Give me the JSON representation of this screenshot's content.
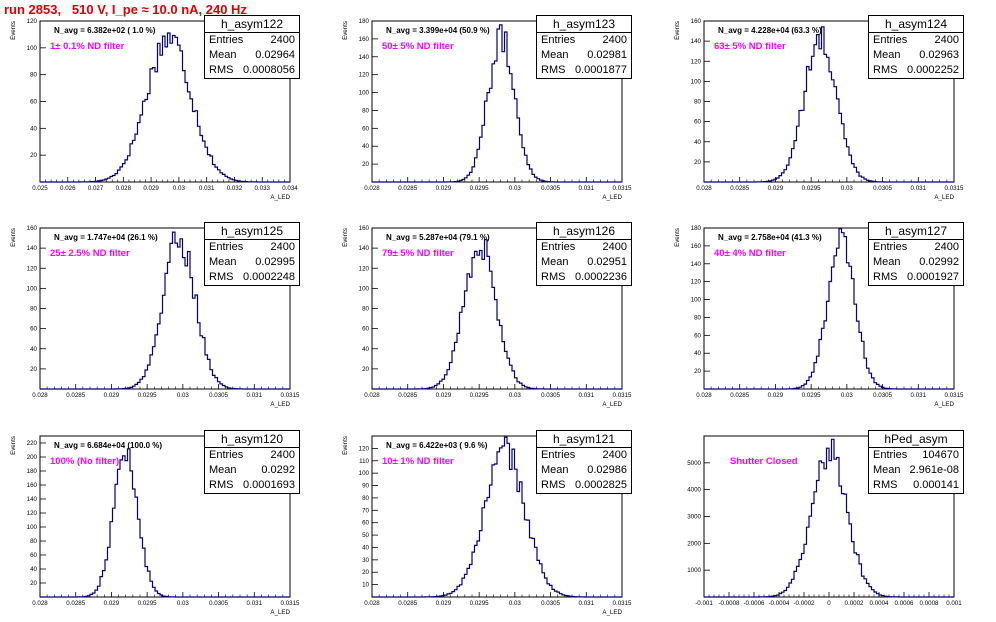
{
  "page_title": "run 2853,   510 V, I_pe ≈ 10.0 nA, 240 Hz",
  "colors": {
    "title": "#e00000",
    "filter_label": "#ff00ff",
    "histogram": "#000080",
    "axes": "#000000"
  },
  "chart_data": [
    {
      "type": "histogram",
      "name": "h_asym122",
      "ylabel": "Events",
      "xlabel": "A_LED",
      "xlim": [
        0.025,
        0.034
      ],
      "ylim": [
        0,
        120
      ],
      "xticks": [
        "0.025",
        "0.026",
        "0.027",
        "0.028",
        "0.029",
        "0.03",
        "0.031",
        "0.032",
        "0.033",
        "0.034"
      ],
      "xtick_values": [
        0.025,
        0.026,
        0.027,
        0.028,
        0.029,
        0.03,
        0.031,
        0.032,
        0.033,
        0.034
      ],
      "yticks": [
        "20",
        "40",
        "60",
        "80",
        "100",
        "120"
      ],
      "ytick_values": [
        20,
        40,
        60,
        80,
        100,
        120
      ],
      "stats": {
        "title": "h_asym122",
        "rows": [
          [
            "Entries",
            "2400"
          ],
          [
            "Mean",
            "0.02964"
          ],
          [
            "RMS",
            "0.0008056"
          ]
        ]
      },
      "n_avg": "N_avg = 6.382e+02 ( 1.0 %)",
      "filter": "1± 0.1% ND filter",
      "mean": 0.02964,
      "rms": 0.0008056,
      "peak": 108
    },
    {
      "type": "histogram",
      "name": "h_asym123",
      "ylabel": "Events",
      "xlabel": "A_LED",
      "xlim": [
        0.028,
        0.0315
      ],
      "ylim": [
        0,
        180
      ],
      "xticks": [
        "0.028",
        "0.0285",
        "0.029",
        "0.0295",
        "0.03",
        "0.0305",
        "0.031",
        "0.0315"
      ],
      "xtick_values": [
        0.028,
        0.0285,
        0.029,
        0.0295,
        0.03,
        0.0305,
        0.031,
        0.0315
      ],
      "yticks": [
        "20",
        "40",
        "60",
        "80",
        "100",
        "120",
        "140",
        "160",
        "180"
      ],
      "ytick_values": [
        20,
        40,
        60,
        80,
        100,
        120,
        140,
        160,
        180
      ],
      "stats": {
        "title": "h_asym123",
        "rows": [
          [
            "Entries",
            "2400"
          ],
          [
            "Mean",
            "0.02981"
          ],
          [
            "RMS",
            "0.0001877"
          ]
        ]
      },
      "n_avg": "N_avg = 3.399e+04 (50.9 %)",
      "filter": "50± 5% ND filter",
      "mean": 0.02981,
      "rms": 0.0001877,
      "peak": 160
    },
    {
      "type": "histogram",
      "name": "h_asym124",
      "ylabel": "Events",
      "xlabel": "A_LED",
      "xlim": [
        0.028,
        0.0315
      ],
      "ylim": [
        0,
        160
      ],
      "xticks": [
        "0.028",
        "0.0285",
        "0.029",
        "0.0295",
        "0.03",
        "0.0305",
        "0.031",
        "0.0315"
      ],
      "xtick_values": [
        0.028,
        0.0285,
        0.029,
        0.0295,
        0.03,
        0.0305,
        0.031,
        0.0315
      ],
      "yticks": [
        "20",
        "40",
        "60",
        "80",
        "100",
        "120",
        "140",
        "160"
      ],
      "ytick_values": [
        20,
        40,
        60,
        80,
        100,
        120,
        140,
        160
      ],
      "stats": {
        "title": "h_asym124",
        "rows": [
          [
            "Entries",
            "2400"
          ],
          [
            "Mean",
            "0.02963"
          ],
          [
            "RMS",
            "0.0002252"
          ]
        ]
      },
      "n_avg": "N_avg = 4.228e+04 (63.3 %)",
      "filter": "63± 5% ND filter",
      "mean": 0.02963,
      "rms": 0.0002252,
      "peak": 142
    },
    {
      "type": "histogram",
      "name": "h_asym125",
      "ylabel": "Events",
      "xlabel": "A_LED",
      "xlim": [
        0.028,
        0.0315
      ],
      "ylim": [
        0,
        160
      ],
      "xticks": [
        "0.028",
        "0.0285",
        "0.029",
        "0.0295",
        "0.03",
        "0.0305",
        "0.031",
        "0.0315"
      ],
      "xtick_values": [
        0.028,
        0.0285,
        0.029,
        0.0295,
        0.03,
        0.0305,
        0.031,
        0.0315
      ],
      "yticks": [
        "20",
        "40",
        "60",
        "80",
        "100",
        "120",
        "140",
        "160"
      ],
      "ytick_values": [
        20,
        40,
        60,
        80,
        100,
        120,
        140,
        160
      ],
      "stats": {
        "title": "h_asym125",
        "rows": [
          [
            "Entries",
            "2400"
          ],
          [
            "Mean",
            "0.02995"
          ],
          [
            "RMS",
            "0.0002248"
          ]
        ]
      },
      "n_avg": "N_avg = 1.747e+04 (26.1 %)",
      "filter": "25± 2.5% ND filter",
      "mean": 0.02995,
      "rms": 0.0002248,
      "peak": 150
    },
    {
      "type": "histogram",
      "name": "h_asym126",
      "ylabel": "Events",
      "xlabel": "A_LED",
      "xlim": [
        0.028,
        0.0315
      ],
      "ylim": [
        0,
        160
      ],
      "xticks": [
        "0.028",
        "0.0285",
        "0.029",
        "0.0295",
        "0.03",
        "0.0305",
        "0.031",
        "0.0315"
      ],
      "xtick_values": [
        0.028,
        0.0285,
        0.029,
        0.0295,
        0.03,
        0.0305,
        0.031,
        0.0315
      ],
      "yticks": [
        "20",
        "40",
        "60",
        "80",
        "100",
        "120",
        "140",
        "160"
      ],
      "ytick_values": [
        20,
        40,
        60,
        80,
        100,
        120,
        140,
        160
      ],
      "stats": {
        "title": "h_asym126",
        "rows": [
          [
            "Entries",
            "2400"
          ],
          [
            "Mean",
            "0.02951"
          ],
          [
            "RMS",
            "0.0002236"
          ]
        ]
      },
      "n_avg": "N_avg = 5.287e+04 (79.1 %)",
      "filter": "79± 5% ND filter",
      "mean": 0.02951,
      "rms": 0.0002236,
      "peak": 145
    },
    {
      "type": "histogram",
      "name": "h_asym127",
      "ylabel": "Events",
      "xlabel": "A_LED",
      "xlim": [
        0.028,
        0.0315
      ],
      "ylim": [
        0,
        180
      ],
      "xticks": [
        "0.028",
        "0.0285",
        "0.029",
        "0.0295",
        "0.03",
        "0.0305",
        "0.031",
        "0.0315"
      ],
      "xtick_values": [
        0.028,
        0.0285,
        0.029,
        0.0295,
        0.03,
        0.0305,
        0.031,
        0.0315
      ],
      "yticks": [
        "20",
        "40",
        "60",
        "80",
        "100",
        "120",
        "140",
        "160",
        "180"
      ],
      "ytick_values": [
        20,
        40,
        60,
        80,
        100,
        120,
        140,
        160,
        180
      ],
      "stats": {
        "title": "h_asym127",
        "rows": [
          [
            "Entries",
            "2400"
          ],
          [
            "Mean",
            "0.02992"
          ],
          [
            "RMS",
            "0.0001927"
          ]
        ]
      },
      "n_avg": "N_avg = 2.758e+04 (41.3 %)",
      "filter": "40± 4% ND filter",
      "mean": 0.02992,
      "rms": 0.0001927,
      "peak": 165
    },
    {
      "type": "histogram",
      "name": "h_asym120",
      "ylabel": "Events",
      "xlabel": "A_LED",
      "xlim": [
        0.028,
        0.0315
      ],
      "ylim": [
        0,
        230
      ],
      "xticks": [
        "0.028",
        "0.0285",
        "0.029",
        "0.0295",
        "0.03",
        "0.0305",
        "0.031",
        "0.0315"
      ],
      "xtick_values": [
        0.028,
        0.0285,
        0.029,
        0.0295,
        0.03,
        0.0305,
        0.031,
        0.0315
      ],
      "yticks": [
        "20",
        "40",
        "60",
        "80",
        "100",
        "120",
        "140",
        "160",
        "180",
        "200",
        "220"
      ],
      "ytick_values": [
        20,
        40,
        60,
        80,
        100,
        120,
        140,
        160,
        180,
        200,
        220
      ],
      "stats": {
        "title": "h_asym120",
        "rows": [
          [
            "Entries",
            "2400"
          ],
          [
            "Mean",
            "0.0292"
          ],
          [
            "RMS",
            "0.0001693"
          ]
        ]
      },
      "n_avg": "N_avg = 6.684e+04 (100.0 %)",
      "filter": "100% (No filter)",
      "mean": 0.0292,
      "rms": 0.0001693,
      "peak": 205
    },
    {
      "type": "histogram",
      "name": "h_asym121",
      "ylabel": "Events",
      "xlabel": "A_LED",
      "xlim": [
        0.028,
        0.0315
      ],
      "ylim": [
        0,
        130
      ],
      "xticks": [
        "0.028",
        "0.0285",
        "0.029",
        "0.0295",
        "0.03",
        "0.0305",
        "0.031",
        "0.0315"
      ],
      "xtick_values": [
        0.028,
        0.0285,
        0.029,
        0.0295,
        0.03,
        0.0305,
        0.031,
        0.0315
      ],
      "yticks": [
        "10",
        "20",
        "30",
        "40",
        "50",
        "60",
        "70",
        "80",
        "90",
        "100",
        "110",
        "120"
      ],
      "ytick_values": [
        10,
        20,
        30,
        40,
        50,
        60,
        70,
        80,
        90,
        100,
        110,
        120
      ],
      "stats": {
        "title": "h_asym121",
        "rows": [
          [
            "Entries",
            "2400"
          ],
          [
            "Mean",
            "0.02986"
          ],
          [
            "RMS",
            "0.0002825"
          ]
        ]
      },
      "n_avg": "N_avg = 6.422e+03 ( 9.6 %)",
      "filter": "10± 1% ND filter",
      "mean": 0.02986,
      "rms": 0.0002825,
      "peak": 118
    },
    {
      "type": "histogram",
      "name": "hPed_asym",
      "ylabel": "",
      "xlabel": "",
      "xlim": [
        -0.001,
        0.001
      ],
      "ylim": [
        0,
        6000
      ],
      "xticks": [
        "-0.001",
        "-0.0008",
        "-0.0006",
        "-0.0004",
        "-0.0002",
        "0",
        "0.0002",
        "0.0004",
        "0.0006",
        "0.0008",
        "0.001"
      ],
      "xtick_values": [
        -0.001,
        -0.0008,
        -0.0006,
        -0.0004,
        -0.0002,
        0,
        0.0002,
        0.0004,
        0.0006,
        0.0008,
        0.001
      ],
      "yticks": [
        "1000",
        "2000",
        "3000",
        "4000",
        "5000"
      ],
      "ytick_values": [
        1000,
        2000,
        3000,
        4000,
        5000
      ],
      "stats": {
        "title": "hPed_asym",
        "rows": [
          [
            "Entries",
            "104670"
          ],
          [
            "Mean",
            "2.961e-08"
          ],
          [
            "RMS",
            "0.000141"
          ]
        ]
      },
      "n_avg": "",
      "filter": "Shutter Closed",
      "mean": 0.0,
      "rms": 0.000141,
      "peak": 5450
    }
  ]
}
